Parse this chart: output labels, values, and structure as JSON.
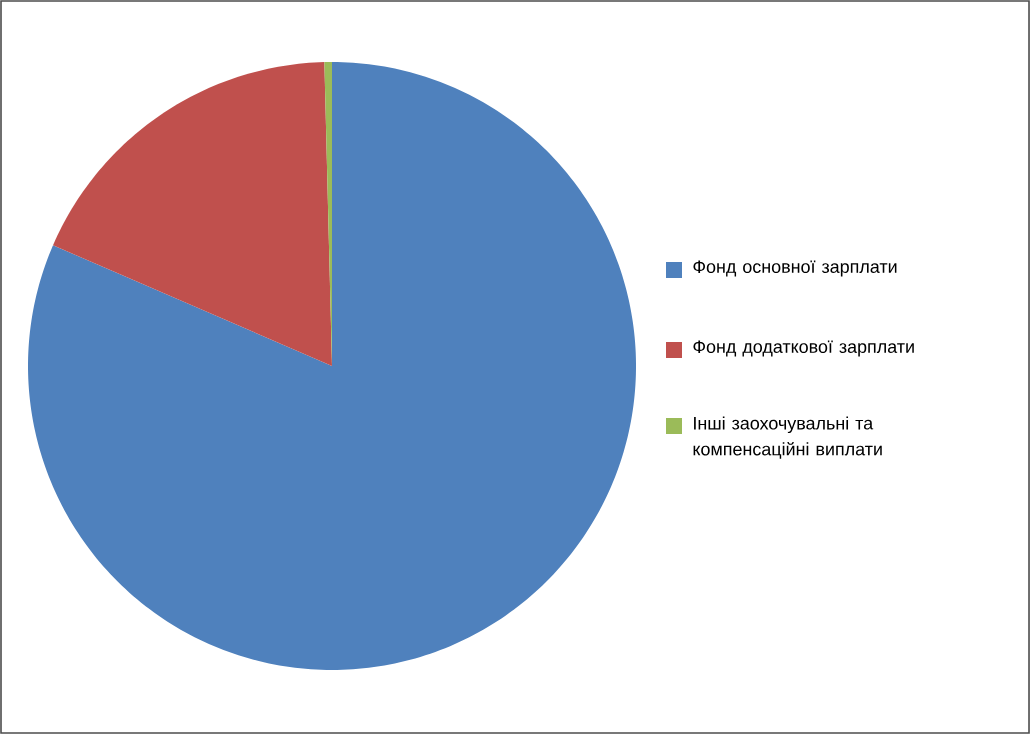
{
  "chart_data": {
    "type": "pie",
    "categories": [
      "Фонд основної зарплати",
      "Фонд додаткової зарплати",
      "Інші заохочувальні та компенсаційні виплати"
    ],
    "values": [
      81.5,
      18.1,
      0.4
    ],
    "colors": [
      "#4f81bd",
      "#c0504d",
      "#9bbb59"
    ],
    "legend": "right"
  }
}
